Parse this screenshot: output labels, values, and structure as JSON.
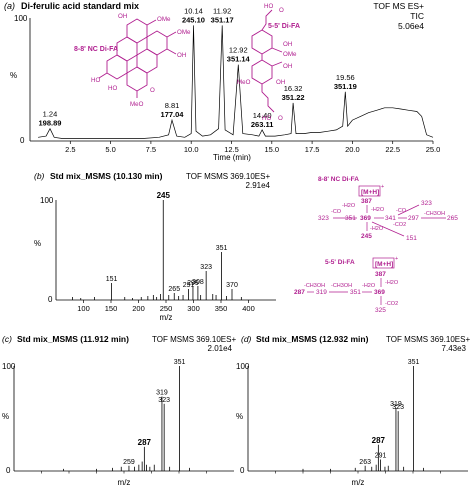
{
  "chart_data": [
    {
      "id": "a",
      "type": "line",
      "panel_label": "(a)",
      "title": "Di-ferulic acid standard mix",
      "mode": "TOF MS ES+",
      "trace": "TIC",
      "intensity": "5.06e4",
      "ylabel": "%",
      "xlabel": "Time (min)",
      "xlim": [
        0,
        25
      ],
      "ylim": [
        0,
        100
      ],
      "xticks": [
        "2.5",
        "5.0",
        "7.5",
        "10.0",
        "12.5",
        "15.0",
        "17.5",
        "20.0",
        "22.5",
        "25.0"
      ],
      "yticks": [
        "0",
        "100"
      ],
      "series": [
        {
          "x": [
            0.5,
            1.0,
            1.24,
            1.5,
            2.0,
            3.0,
            4.0,
            5.0,
            6.0,
            7.0,
            8.0,
            8.6,
            8.81,
            9.1,
            9.6,
            10.0,
            10.14,
            10.3,
            10.7,
            11.2,
            11.7,
            11.92,
            12.1,
            12.6,
            12.92,
            13.2,
            13.8,
            14.2,
            14.4,
            14.6,
            15.2,
            15.8,
            16.2,
            16.32,
            16.5,
            17.0,
            17.5,
            18.0,
            18.5,
            19.0,
            19.4,
            19.56,
            19.7,
            20.0,
            20.5,
            21.0,
            21.5,
            22.0,
            22.5,
            23.0,
            23.5,
            24.0,
            24.3,
            24.6,
            25.0
          ],
          "y": [
            3,
            4,
            10,
            3,
            2,
            2,
            2,
            2,
            2,
            2,
            3,
            5,
            17,
            4,
            3,
            6,
            94,
            8,
            4,
            5,
            10,
            94,
            9,
            5,
            62,
            6,
            5,
            4,
            9,
            4,
            4,
            5,
            6,
            31,
            6,
            6,
            7,
            7,
            8,
            9,
            12,
            40,
            12,
            17,
            20,
            23,
            25,
            27,
            27,
            26,
            25,
            24,
            20,
            5,
            3
          ]
        }
      ],
      "annotations": [
        {
          "time": "1.24",
          "mz": "198.89"
        },
        {
          "time": "8.81",
          "mz": "177.04"
        },
        {
          "time": "10.14",
          "mz": "245.10"
        },
        {
          "time": "11.92",
          "mz": "351.17"
        },
        {
          "time": "12.92",
          "mz": "351.14"
        },
        {
          "time": "14.40",
          "mz": "263.11"
        },
        {
          "time": "16.32",
          "mz": "351.22"
        },
        {
          "time": "19.56",
          "mz": "351.19"
        }
      ],
      "compound_labels": [
        "8-8' NC Di-FA",
        "5-5' Di-FA"
      ],
      "accent_color": "#b01e8f"
    },
    {
      "id": "b",
      "type": "bar",
      "panel_label": "(b)",
      "title": "Std mix_MSMS (10.130 min)",
      "mode": "TOF MSMS 369.10ES+",
      "intensity": "2.91e4",
      "ylabel": "%",
      "xlabel": "m/z",
      "xlim": [
        50,
        450
      ],
      "ylim": [
        0,
        100
      ],
      "xticks": [
        "100",
        "150",
        "200",
        "250",
        "300",
        "350",
        "400"
      ],
      "yticks": [
        "0",
        "100"
      ],
      "peak_labels": [
        "151",
        "245",
        "265",
        "291",
        "299",
        "308",
        "323",
        "351",
        "370"
      ],
      "peaks": [
        {
          "mz": 80,
          "value": 3
        },
        {
          "mz": 95,
          "value": 2
        },
        {
          "mz": 120,
          "value": 3
        },
        {
          "mz": 151,
          "value": 17
        },
        {
          "mz": 175,
          "value": 3
        },
        {
          "mz": 189,
          "value": 2
        },
        {
          "mz": 205,
          "value": 3
        },
        {
          "mz": 217,
          "value": 4
        },
        {
          "mz": 227,
          "value": 5
        },
        {
          "mz": 233,
          "value": 3
        },
        {
          "mz": 240,
          "value": 6
        },
        {
          "mz": 245,
          "value": 100
        },
        {
          "mz": 255,
          "value": 5
        },
        {
          "mz": 265,
          "value": 7
        },
        {
          "mz": 273,
          "value": 4
        },
        {
          "mz": 281,
          "value": 5
        },
        {
          "mz": 291,
          "value": 11
        },
        {
          "mz": 299,
          "value": 13
        },
        {
          "mz": 308,
          "value": 14
        },
        {
          "mz": 313,
          "value": 5
        },
        {
          "mz": 323,
          "value": 29
        },
        {
          "mz": 335,
          "value": 6
        },
        {
          "mz": 341,
          "value": 5
        },
        {
          "mz": 351,
          "value": 48
        },
        {
          "mz": 360,
          "value": 4
        },
        {
          "mz": 370,
          "value": 11
        },
        {
          "mz": 387,
          "value": 3
        }
      ]
    },
    {
      "id": "c",
      "type": "bar",
      "panel_label": "(c)",
      "title": "Std mix_MSMS (11.912 min)",
      "mode": "TOF MSMS 369.10ES+",
      "intensity": "2.01e4",
      "ylabel": "%",
      "xlabel": "m/z",
      "xlim": [
        50,
        450
      ],
      "ylim": [
        0,
        100
      ],
      "yticks": [
        "0",
        "100"
      ],
      "peak_labels": [
        "259",
        "287",
        "319",
        "323",
        "351"
      ],
      "peaks": [
        {
          "mz": 140,
          "value": 2
        },
        {
          "mz": 200,
          "value": 2
        },
        {
          "mz": 229,
          "value": 3
        },
        {
          "mz": 245,
          "value": 4
        },
        {
          "mz": 259,
          "value": 5
        },
        {
          "mz": 269,
          "value": 4
        },
        {
          "mz": 277,
          "value": 6
        },
        {
          "mz": 283,
          "value": 9
        },
        {
          "mz": 287,
          "value": 23
        },
        {
          "mz": 291,
          "value": 6
        },
        {
          "mz": 297,
          "value": 4
        },
        {
          "mz": 305,
          "value": 6
        },
        {
          "mz": 319,
          "value": 71
        },
        {
          "mz": 323,
          "value": 64
        },
        {
          "mz": 333,
          "value": 4
        },
        {
          "mz": 351,
          "value": 100
        },
        {
          "mz": 369,
          "value": 3
        }
      ]
    },
    {
      "id": "d",
      "type": "bar",
      "panel_label": "(d)",
      "title": "Std mix_MSMS (12.932 min)",
      "mode": "TOF MSMS 369.10ES+",
      "intensity": "7.43e3",
      "ylabel": "%",
      "xlabel": "m/z",
      "xlim": [
        50,
        450
      ],
      "ylim": [
        0,
        100
      ],
      "yticks": [
        "0",
        "100"
      ],
      "peak_labels": [
        "263",
        "287",
        "291",
        "319",
        "323",
        "351"
      ],
      "peaks": [
        {
          "mz": 150,
          "value": 2
        },
        {
          "mz": 200,
          "value": 2
        },
        {
          "mz": 245,
          "value": 3
        },
        {
          "mz": 263,
          "value": 5
        },
        {
          "mz": 275,
          "value": 4
        },
        {
          "mz": 283,
          "value": 6
        },
        {
          "mz": 287,
          "value": 25
        },
        {
          "mz": 291,
          "value": 11
        },
        {
          "mz": 299,
          "value": 4
        },
        {
          "mz": 305,
          "value": 5
        },
        {
          "mz": 319,
          "value": 60
        },
        {
          "mz": 323,
          "value": 57
        },
        {
          "mz": 333,
          "value": 4
        },
        {
          "mz": 351,
          "value": 100
        },
        {
          "mz": 369,
          "value": 3
        }
      ]
    }
  ],
  "schemes": [
    {
      "title": "8-8' NC Di-FA",
      "precursor": "[M+H]",
      "precursor_charge": "+",
      "nodes": [
        "387",
        "369",
        "351",
        "341",
        "323",
        "297",
        "265",
        "245",
        "151"
      ],
      "losses": [
        "-H2O",
        "-H2O",
        "-CO",
        "-H2O",
        "-CO",
        "-CO2",
        "-CH3OH",
        "-CH3OH"
      ]
    },
    {
      "title": "5-5' Di-FA",
      "precursor": "[M+H]",
      "precursor_charge": "+",
      "nodes": [
        "387",
        "369",
        "351",
        "319",
        "287",
        "325"
      ],
      "losses": [
        "-H2O",
        "-H2O",
        "-CH3OH",
        "-CH3OH",
        "-CO2"
      ]
    }
  ],
  "structures": {
    "left_labels": [
      "OMe",
      "OMe",
      "OH",
      "OH",
      "HO",
      "HO",
      "O",
      "MeO"
    ],
    "right_labels": [
      "HO",
      "O",
      "OH",
      "OMe",
      "OH",
      "MeO",
      "OH",
      "HO",
      "O"
    ]
  }
}
